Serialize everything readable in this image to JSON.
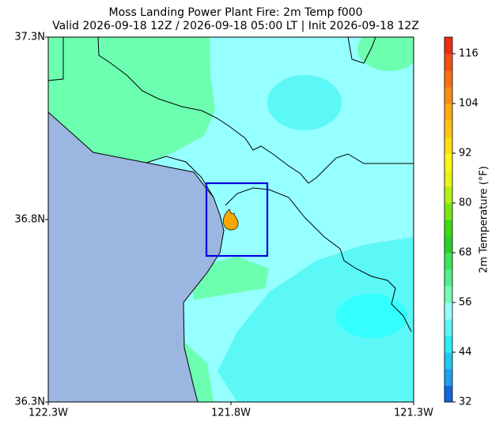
{
  "title": "Moss Landing Power Plant Fire: 2m Temp f000",
  "subtitle": "Valid 2026-09-18 12Z / 2026-09-18 05:00 LT | Init 2026-09-18 12Z",
  "map": {
    "xlim": [
      -122.3,
      -121.3
    ],
    "ylim": [
      36.3,
      37.3
    ],
    "xticks": [
      {
        "value": -122.3,
        "label": "122.3W"
      },
      {
        "value": -121.8,
        "label": "121.8W"
      },
      {
        "value": -121.3,
        "label": "121.3W"
      }
    ],
    "yticks": [
      {
        "value": 36.3,
        "label": "36.3N"
      },
      {
        "value": 36.8,
        "label": "36.8N"
      },
      {
        "value": 37.3,
        "label": "37.3N"
      }
    ]
  },
  "colorbar": {
    "label": "2m Temperature (°F)",
    "clim": [
      32,
      120
    ],
    "ticks": [
      32,
      44,
      56,
      68,
      80,
      92,
      104,
      116
    ],
    "colors": [
      "#1565e0",
      "#1ea0f0",
      "#22c8f0",
      "#28eef5",
      "#5cf6f6",
      "#96ffff",
      "#72ffb4",
      "#50f08c",
      "#3ce65a",
      "#28d228",
      "#3cdc14",
      "#78e614",
      "#b4f014",
      "#e6f514",
      "#fff514",
      "#ffdc14",
      "#ffc314",
      "#ffaa14",
      "#ff8c14",
      "#fa6e14",
      "#f55014",
      "#eb2d14"
    ]
  }
}
